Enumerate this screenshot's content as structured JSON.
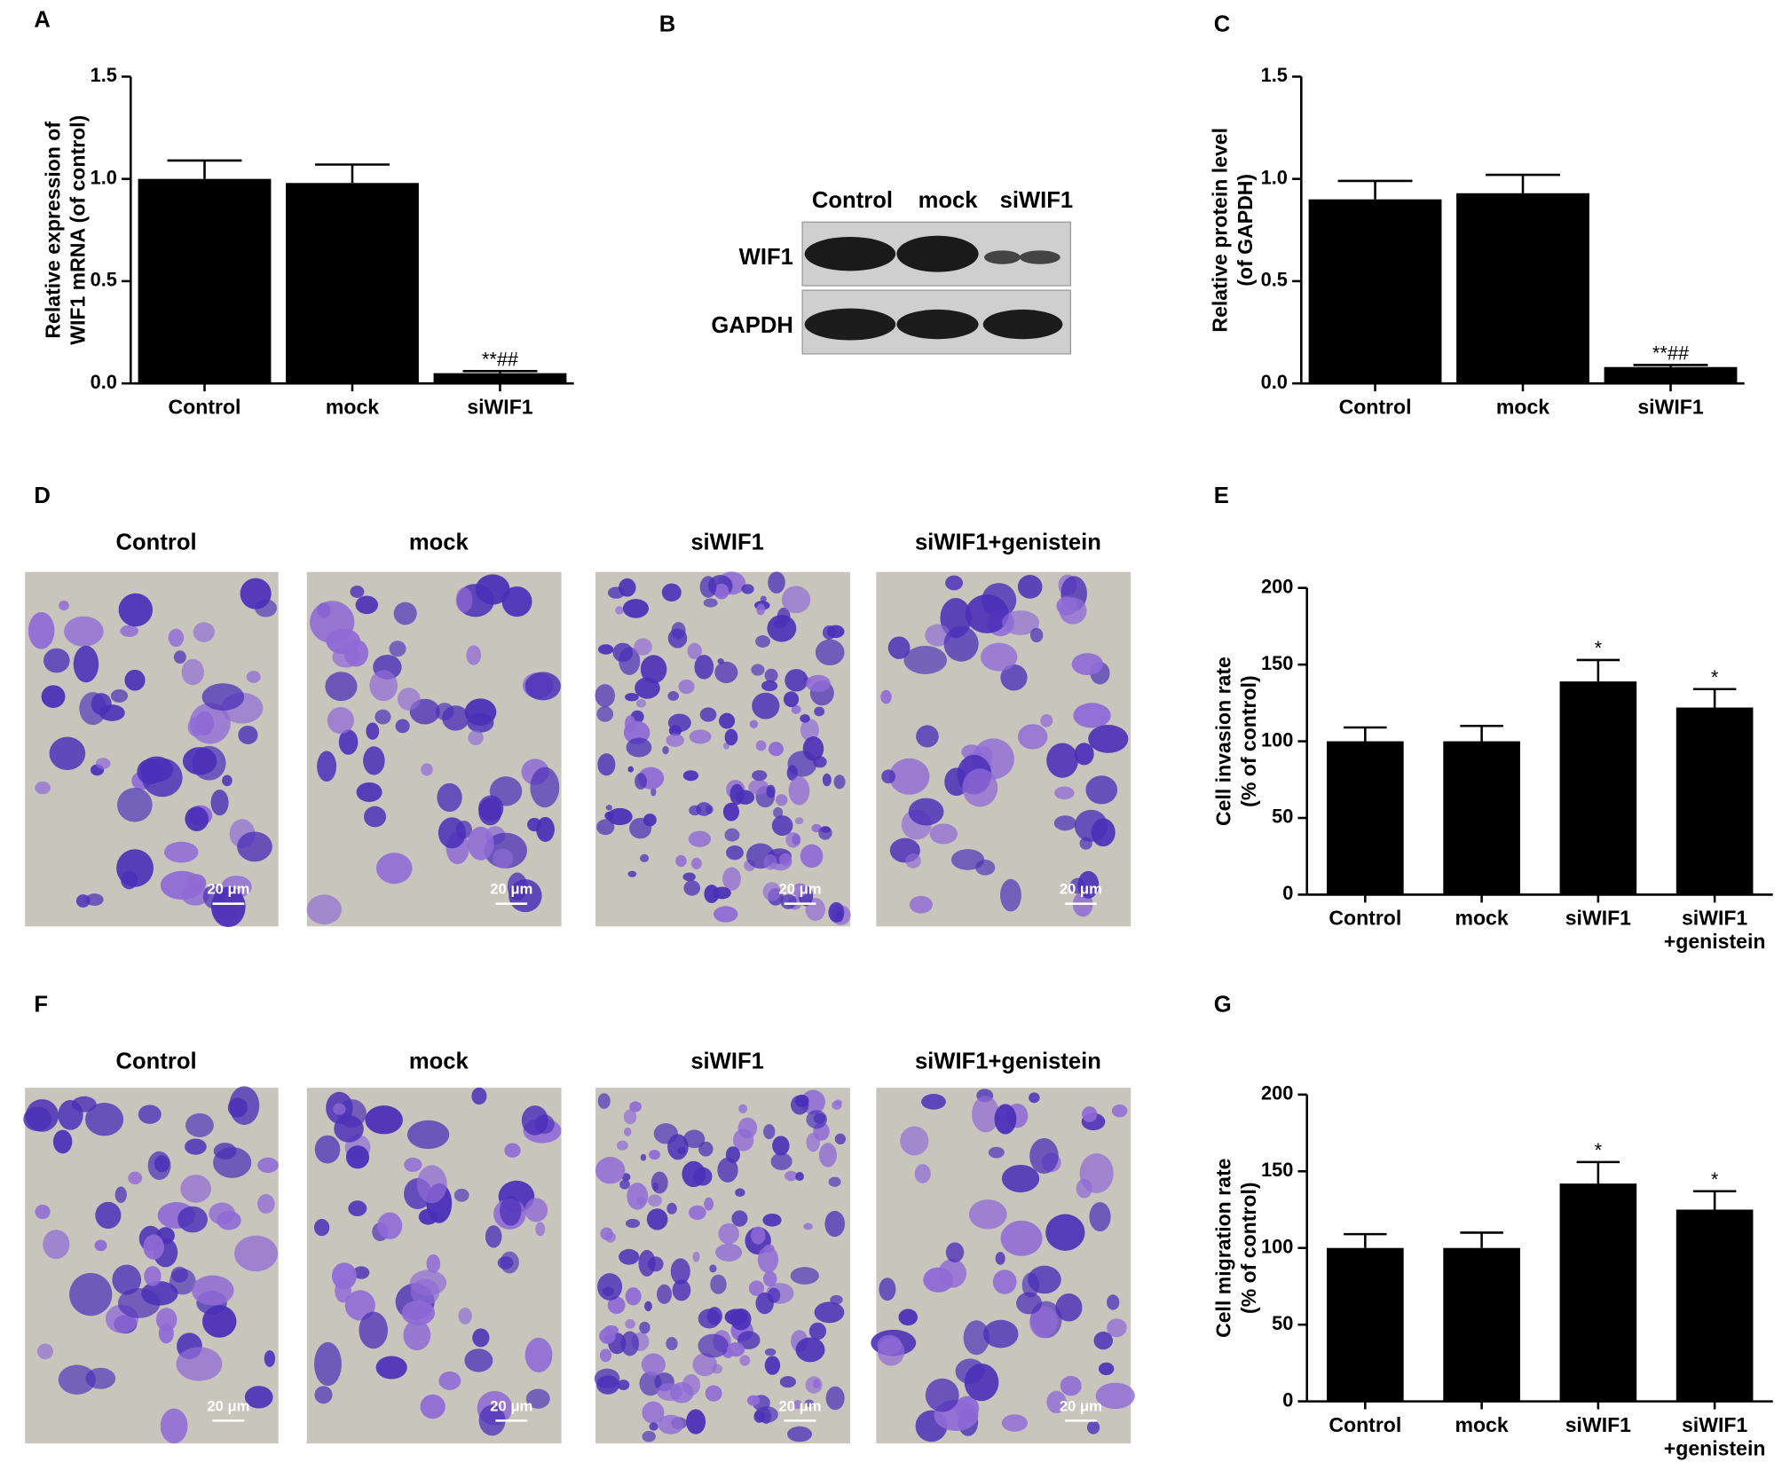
{
  "chart_data": [
    {
      "type": "bar",
      "label": "A",
      "ylabel": [
        "Relative expression of",
        "WIF1 mRNA (of control)"
      ],
      "categories": [
        "Control",
        "mock",
        "siWIF1"
      ],
      "values": [
        1.0,
        0.98,
        0.05
      ],
      "errors": [
        0.09,
        0.09,
        0.01
      ],
      "color": "#000000",
      "ylim": [
        0,
        1.5
      ],
      "yticks": [
        {
          "value": 0,
          "label": "0.0"
        },
        0.5,
        {
          "value": 1,
          "label": "1.0"
        },
        1.5
      ],
      "annotations": [
        {
          "index": 2,
          "text": "**##"
        }
      ]
    },
    {
      "type": "bar",
      "label": "C",
      "ylabel": [
        "Relative protein level",
        "(of GAPDH)"
      ],
      "categories": [
        "Control",
        "mock",
        "siWIF1"
      ],
      "values": [
        0.9,
        0.93,
        0.08
      ],
      "errors": [
        0.09,
        0.09,
        0.01
      ],
      "color": "#000000",
      "ylim": [
        0,
        1.5
      ],
      "yticks": [
        {
          "value": 0,
          "label": "0.0"
        },
        0.5,
        {
          "value": 1,
          "label": "1.0"
        },
        1.5
      ],
      "annotations": [
        {
          "index": 2,
          "text": "**##"
        }
      ]
    },
    {
      "type": "bar",
      "label": "E",
      "ylabel": [
        "Cell invasion rate",
        "(% of control)"
      ],
      "categories": [
        "Control",
        "mock",
        "siWIF1",
        "siWIF1\n+genistein"
      ],
      "values": [
        100,
        100,
        139,
        122
      ],
      "errors": [
        9,
        10,
        14,
        12
      ],
      "color": "#000000",
      "ylim": [
        0,
        200
      ],
      "yticks": [
        0,
        50,
        100,
        150,
        200
      ],
      "annotations": [
        {
          "index": 2,
          "text": "*"
        },
        {
          "index": 3,
          "text": "*"
        }
      ]
    },
    {
      "type": "bar",
      "label": "G",
      "ylabel": [
        "Cell migration rate",
        "(% of control)"
      ],
      "categories": [
        "Control",
        "mock",
        "siWIF1",
        "siWIF1\n+genistein"
      ],
      "values": [
        100,
        100,
        142,
        125
      ],
      "errors": [
        9,
        10,
        14,
        12
      ],
      "color": "#000000",
      "ylim": [
        0,
        200
      ],
      "yticks": [
        0,
        50,
        100,
        150,
        200
      ],
      "annotations": [
        {
          "index": 2,
          "text": "*"
        },
        {
          "index": 3,
          "text": "*"
        }
      ]
    }
  ],
  "blot": {
    "label": "B",
    "lanes": [
      "Control",
      "mock",
      "siWIF1"
    ],
    "rows": [
      "WIF1",
      "GAPDH"
    ]
  },
  "invasion_images": {
    "label": "D",
    "groups": [
      "Control",
      "mock",
      "siWIF1",
      "siWIF1+genistein"
    ],
    "scale_bar": "20 μm"
  },
  "migration_images": {
    "label": "F",
    "groups": [
      "Control",
      "mock",
      "siWIF1",
      "siWIF1+genistein"
    ],
    "scale_bar": "20 μm"
  }
}
